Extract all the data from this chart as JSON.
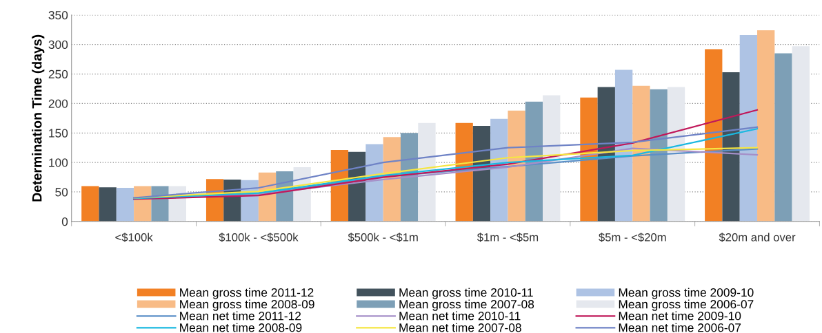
{
  "chart_data": {
    "type": "bar",
    "ylabel": "Determination Time (days)",
    "categories": [
      "<$100k",
      "$100k - <$500k",
      "$500k - <$1m",
      "$1m - <$5m",
      "$5m - <$20m",
      "$20m and over"
    ],
    "ylim": [
      0,
      350
    ],
    "yticks": [
      0,
      50,
      100,
      150,
      200,
      250,
      300,
      350
    ],
    "grid": "y",
    "legend": "bottom",
    "series": [
      {
        "name": "Mean gross time 2011-12",
        "color": "#f28024",
        "values": [
          60,
          72,
          121,
          167,
          210,
          292
        ]
      },
      {
        "name": "Mean gross time 2010-11",
        "color": "#42525c",
        "values": [
          58,
          71,
          118,
          162,
          228,
          253
        ]
      },
      {
        "name": "Mean gross time 2009-10",
        "color": "#aec3e4",
        "values": [
          57,
          70,
          131,
          174,
          257,
          316
        ]
      },
      {
        "name": "Mean gross time 2008-09",
        "color": "#f8bb86",
        "values": [
          60,
          83,
          143,
          188,
          230,
          324
        ]
      },
      {
        "name": "Mean gross time 2007-08",
        "color": "#7d9fb6",
        "values": [
          60,
          85,
          150,
          203,
          224,
          285
        ]
      },
      {
        "name": "Mean gross time 2006-07",
        "color": "#e5e8ee",
        "values": [
          60,
          92,
          167,
          214,
          228,
          297
        ]
      },
      {
        "name": "Mean net time 2011-12",
        "type": "line",
        "color": "#5b8fc7",
        "values": [
          40,
          46,
          76,
          93,
          111,
          123
        ]
      },
      {
        "name": "Mean net time 2010-11",
        "type": "line",
        "color": "#a58fc8",
        "values": [
          38,
          46,
          71,
          92,
          124,
          113
        ]
      },
      {
        "name": "Mean net time 2009-10",
        "type": "line",
        "color": "#c0185a",
        "values": [
          38,
          44,
          75,
          97,
          133,
          189
        ]
      },
      {
        "name": "Mean net time 2008-09",
        "type": "line",
        "color": "#1ab8e0",
        "values": [
          39,
          48,
          78,
          100,
          112,
          157
        ]
      },
      {
        "name": "Mean net time 2007-08",
        "type": "line",
        "color": "#f5e642",
        "values": [
          40,
          51,
          81,
          108,
          120,
          125
        ]
      },
      {
        "name": "Mean net time 2006-07",
        "type": "line",
        "color": "#6f83c6",
        "values": [
          40,
          57,
          100,
          125,
          134,
          160
        ]
      }
    ]
  }
}
